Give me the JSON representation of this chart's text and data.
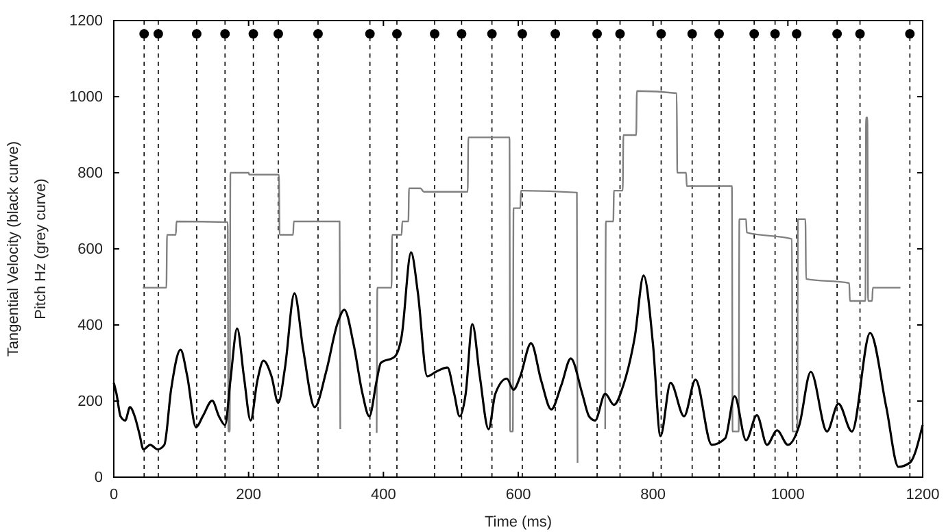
{
  "chart_data": {
    "type": "line",
    "xlabel": "Time (ms)",
    "ylabel": "Tangential Velocity (black curve)",
    "annotations": [
      "Pitch Hz (grey curve)"
    ],
    "xlim": [
      0,
      1200
    ],
    "xticks": [
      0,
      200,
      400,
      600,
      800,
      1000,
      1200
    ],
    "ylim": [
      0,
      1200
    ],
    "yticks": [
      0,
      200,
      400,
      600,
      800,
      1000,
      1200
    ],
    "grid": false,
    "ref_lines": [
      {
        "axis": "x",
        "value": 45,
        "line_style": "dashed",
        "color": "#000000"
      },
      {
        "axis": "x",
        "value": 66,
        "line_style": "dashed",
        "color": "#000000"
      },
      {
        "axis": "x",
        "value": 123,
        "line_style": "dashed",
        "color": "#000000"
      },
      {
        "axis": "x",
        "value": 165,
        "line_style": "dashed",
        "color": "#000000"
      },
      {
        "axis": "x",
        "value": 207,
        "line_style": "dashed",
        "color": "#000000"
      },
      {
        "axis": "x",
        "value": 244,
        "line_style": "dashed",
        "color": "#000000"
      },
      {
        "axis": "x",
        "value": 303,
        "line_style": "dashed",
        "color": "#000000"
      },
      {
        "axis": "x",
        "value": 380,
        "line_style": "dashed",
        "color": "#000000"
      },
      {
        "axis": "x",
        "value": 420,
        "line_style": "dashed",
        "color": "#000000"
      },
      {
        "axis": "x",
        "value": 476,
        "line_style": "dashed",
        "color": "#000000"
      },
      {
        "axis": "x",
        "value": 516,
        "line_style": "dashed",
        "color": "#000000"
      },
      {
        "axis": "x",
        "value": 561,
        "line_style": "dashed",
        "color": "#000000"
      },
      {
        "axis": "x",
        "value": 606,
        "line_style": "dashed",
        "color": "#000000"
      },
      {
        "axis": "x",
        "value": 655,
        "line_style": "dashed",
        "color": "#000000"
      },
      {
        "axis": "x",
        "value": 717,
        "line_style": "dashed",
        "color": "#000000"
      },
      {
        "axis": "x",
        "value": 751,
        "line_style": "dashed",
        "color": "#000000"
      },
      {
        "axis": "x",
        "value": 812,
        "line_style": "dashed",
        "color": "#000000"
      },
      {
        "axis": "x",
        "value": 858,
        "line_style": "dashed",
        "color": "#000000"
      },
      {
        "axis": "x",
        "value": 898,
        "line_style": "dashed",
        "color": "#000000"
      },
      {
        "axis": "x",
        "value": 950,
        "line_style": "dashed",
        "color": "#000000"
      },
      {
        "axis": "x",
        "value": 981,
        "line_style": "dashed",
        "color": "#000000"
      },
      {
        "axis": "x",
        "value": 1013,
        "line_style": "dashed",
        "color": "#000000"
      },
      {
        "axis": "x",
        "value": 1073,
        "line_style": "dashed",
        "color": "#000000"
      },
      {
        "axis": "x",
        "value": 1107,
        "line_style": "dashed",
        "color": "#000000"
      },
      {
        "axis": "x",
        "value": 1181,
        "line_style": "dashed",
        "color": "#000000"
      }
    ],
    "series": [
      {
        "color": "#808080",
        "x": [
          43,
          78,
          79,
          92,
          93,
          169,
          170,
          172,
          173,
          200,
          201,
          245,
          246,
          266,
          267,
          335,
          336,
          363,
          390,
          391,
          412,
          413,
          427,
          428,
          437,
          438,
          455,
          460,
          525,
          526,
          587,
          588,
          592,
          593,
          603,
          604,
          687,
          688,
          708,
          729,
          730,
          741,
          742,
          755,
          756,
          775,
          776,
          835,
          836,
          849,
          850,
          917,
          918,
          927,
          928,
          938,
          939,
          1006,
          1007,
          1014,
          1015,
          1026,
          1027,
          1091,
          1092,
          1115,
          1116,
          1118,
          1119,
          1125,
          1126,
          1167
        ],
        "values": [
          498,
          498,
          637,
          637,
          672,
          670,
          120,
          120,
          800,
          800,
          795,
          795,
          637,
          637,
          672,
          672,
          126,
          null,
          116,
          498,
          498,
          637,
          637,
          672,
          672,
          759,
          759,
          750,
          750,
          893,
          893,
          120,
          120,
          707,
          707,
          753,
          748,
          38,
          null,
          126,
          672,
          672,
          753,
          753,
          899,
          899,
          1015,
          1009,
          800,
          800,
          765,
          765,
          120,
          120,
          678,
          678,
          643,
          626,
          120,
          120,
          678,
          678,
          521,
          510,
          463,
          463,
          945,
          945,
          463,
          463,
          498,
          498
        ]
      },
      {
        "color": "#000000",
        "x": [
          0,
          4,
          10,
          17,
          24,
          31,
          38,
          44,
          54,
          65,
          75,
          85,
          99,
          109,
          122,
          132,
          146,
          156,
          165,
          173,
          183,
          193,
          203,
          213,
          222,
          234,
          244,
          254,
          268,
          281,
          298,
          315,
          332,
          342,
          356,
          369,
          379,
          390,
          396,
          417,
          427,
          441,
          451,
          465,
          478,
          495,
          505,
          513,
          522,
          532,
          543,
          556,
          566,
          583,
          593,
          603,
          619,
          634,
          649,
          664,
          678,
          695,
          705,
          714,
          729,
          742,
          756,
          773,
          786,
          800,
          811,
          826,
          846,
          863,
          887,
          907,
          921,
          938,
          954,
          969,
          984,
          1000,
          1017,
          1034,
          1058,
          1075,
          1095,
          1122,
          1146,
          1164,
          1181,
          1200
        ],
        "values": [
          248,
          219,
          160,
          149,
          184,
          160,
          114,
          73,
          85,
          73,
          85,
          230,
          335,
          265,
          131,
          160,
          201,
          160,
          137,
          254,
          391,
          265,
          149,
          254,
          306,
          265,
          195,
          288,
          483,
          335,
          184,
          277,
          405,
          440,
          347,
          219,
          160,
          254,
          300,
          317,
          370,
          591,
          486,
          265,
          277,
          288,
          219,
          160,
          219,
          402,
          265,
          126,
          219,
          259,
          230,
          265,
          352,
          254,
          178,
          242,
          312,
          219,
          160,
          149,
          219,
          190,
          242,
          370,
          530,
          347,
          108,
          248,
          160,
          256,
          85,
          102,
          213,
          97,
          163,
          85,
          123,
          85,
          137,
          277,
          120,
          193,
          120,
          379,
          184,
          27,
          38,
          137
        ]
      },
      {
        "type": "scatter",
        "marker": "circle",
        "color": "#000000",
        "x": [
          45,
          66,
          123,
          165,
          207,
          244,
          303,
          380,
          420,
          476,
          516,
          561,
          606,
          655,
          717,
          751,
          812,
          858,
          898,
          950,
          981,
          1013,
          1073,
          1107,
          1181
        ],
        "values": [
          1165,
          1165,
          1165,
          1165,
          1165,
          1165,
          1165,
          1165,
          1165,
          1165,
          1165,
          1165,
          1165,
          1165,
          1165,
          1165,
          1165,
          1165,
          1165,
          1165,
          1165,
          1165,
          1165,
          1165,
          1165
        ]
      }
    ]
  }
}
